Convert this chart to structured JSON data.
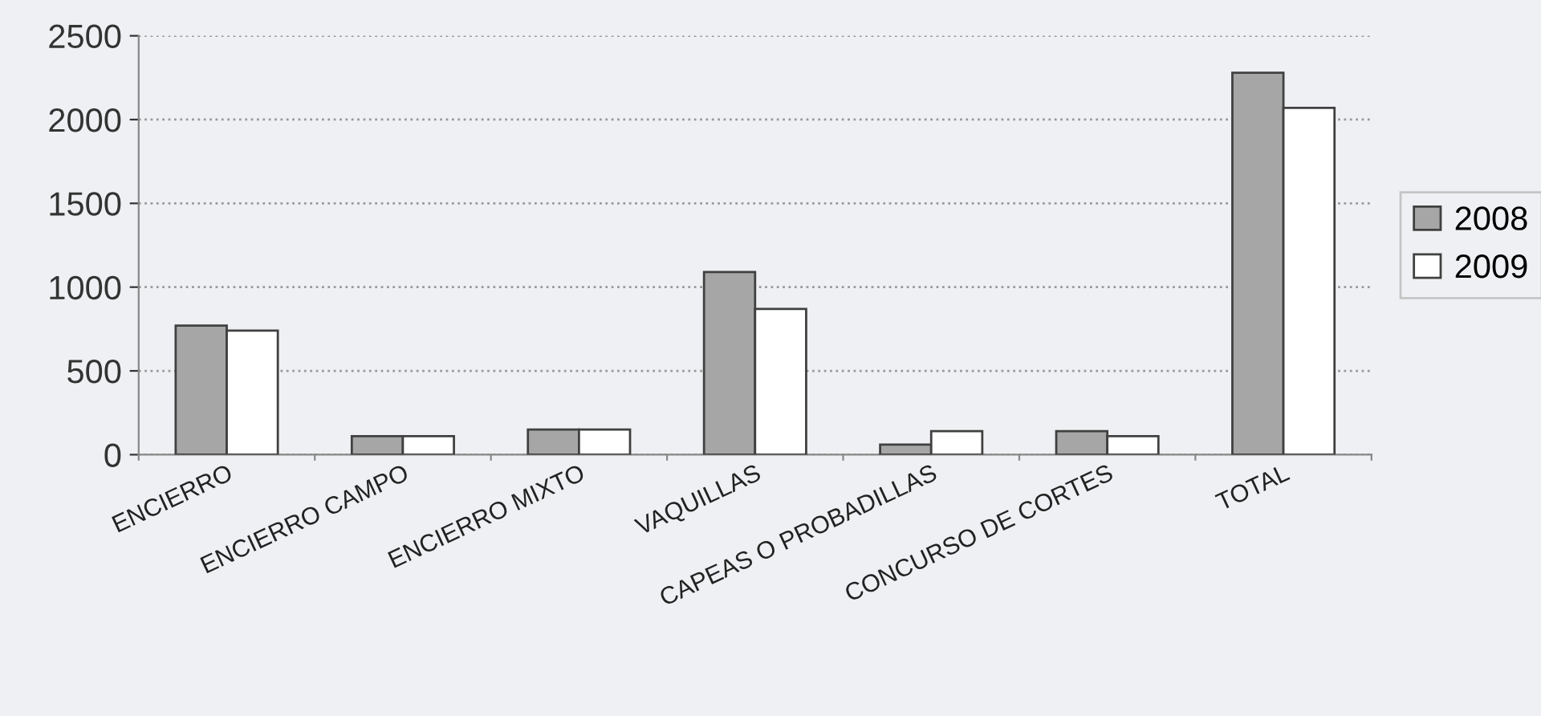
{
  "chart_data": {
    "type": "bar",
    "categories": [
      "ENCIERRO",
      "ENCIERRO CAMPO",
      "ENCIERRO MIXTO",
      "VAQUILLAS",
      "CAPEAS O PROBADILLAS",
      "CONCURSO DE CORTES",
      "TOTAL"
    ],
    "series": [
      {
        "name": "2008",
        "color": "#a6a6a6",
        "values": [
          770,
          110,
          150,
          1090,
          60,
          140,
          2280
        ]
      },
      {
        "name": "2009",
        "color": "#ffffff",
        "values": [
          740,
          110,
          150,
          870,
          140,
          110,
          2070
        ]
      }
    ],
    "ylim": [
      0,
      2500
    ],
    "yticks": [
      0,
      500,
      1000,
      1500,
      2000,
      2500
    ],
    "grid": "y",
    "legend": "right"
  }
}
